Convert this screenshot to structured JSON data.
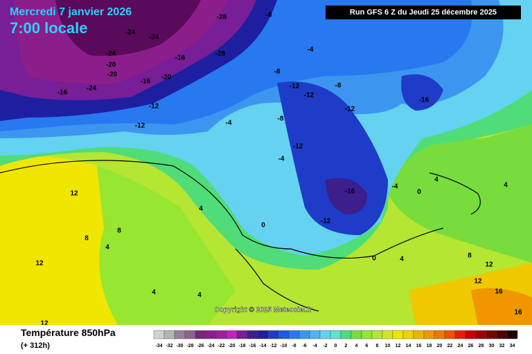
{
  "header": {
    "title": "Mercredi 7 janvier 2026",
    "subtitle": "7:00 locale",
    "run": "Run GFS 6 Z du Jeudi 25 décembre 2025"
  },
  "map": {
    "contour_labels": [
      -28,
      -24,
      -24,
      -16,
      -20,
      -24,
      -16,
      -24,
      -20,
      -28,
      -16,
      -20,
      -12,
      -12,
      -8,
      -8,
      -4,
      -12,
      -8,
      -12,
      -12,
      -16,
      -4,
      -4,
      -8,
      -12,
      -16,
      -12,
      -4,
      0,
      0,
      4,
      4,
      4,
      0,
      4,
      12,
      8,
      12,
      8,
      4,
      4,
      4,
      8,
      12,
      12,
      16,
      16,
      12
    ],
    "copyright": "Copyright © 2025 Meteociel.fr"
  },
  "legend": {
    "title": "Température 850hPa",
    "lead": "(+ 312h)",
    "values": [
      -34,
      -32,
      -30,
      -28,
      -26,
      -24,
      -22,
      -20,
      -18,
      -16,
      -14,
      -12,
      -10,
      -8,
      -6,
      -4,
      -2,
      0,
      2,
      4,
      6,
      8,
      10,
      12,
      14,
      16,
      18,
      20,
      22,
      24,
      26,
      28,
      30,
      32,
      34
    ],
    "colors": [
      "#d2d2d2",
      "#b4b4b4",
      "#968296",
      "#8c648c",
      "#782878",
      "#8c1e8c",
      "#a01ea0",
      "#c81ec8",
      "#781e96",
      "#3c1e8c",
      "#1e1ea0",
      "#1e3cc8",
      "#1e5ae6",
      "#2878f0",
      "#3c96f0",
      "#50b4f0",
      "#64d2f0",
      "#5ae6c8",
      "#50dc78",
      "#78dc3c",
      "#96e632",
      "#b4e632",
      "#d2e628",
      "#f0e600",
      "#f0d200",
      "#f0b400",
      "#f09600",
      "#f07800",
      "#f05000",
      "#e61e00",
      "#c80000",
      "#a00000",
      "#780000",
      "#500000",
      "#1e0000"
    ]
  }
}
